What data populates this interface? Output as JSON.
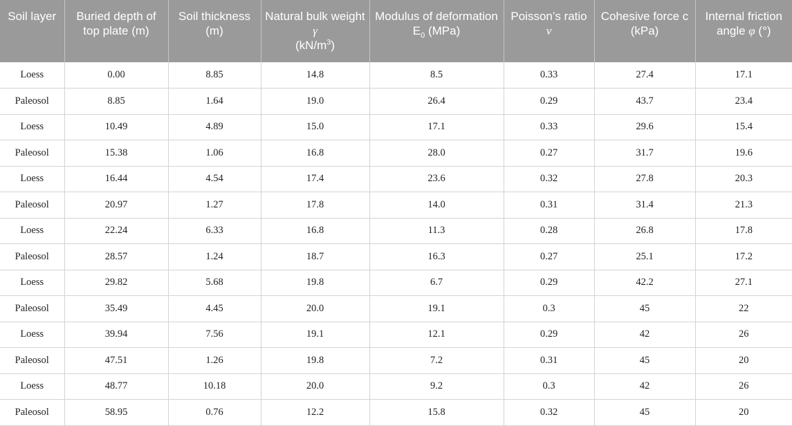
{
  "headers": {
    "soil_layer": "Soil layer",
    "buried_depth": "Buried depth of top plate (m)",
    "soil_thickness": "Soil thickness (m)",
    "bulk_weight_a": "Natural bulk weight ",
    "bulk_weight_sym": "γ",
    "bulk_weight_unit_a": "(kN/m",
    "bulk_weight_unit_sup": "3",
    "bulk_weight_unit_b": ")",
    "modulus_a": "Modulus of deformation E",
    "modulus_sub": "0",
    "modulus_b": " (MPa)",
    "poisson_a": "Poisson’s ratio ",
    "poisson_sym": "ν",
    "cohesive": "Cohesive force c (kPa)",
    "friction_a": "Internal friction angle ",
    "friction_sym": "φ",
    "friction_unit": " (°)"
  },
  "rows": [
    [
      "Loess",
      "0.00",
      "8.85",
      "14.8",
      "8.5",
      "0.33",
      "27.4",
      "17.1"
    ],
    [
      "Paleosol",
      "8.85",
      "1.64",
      "19.0",
      "26.4",
      "0.29",
      "43.7",
      "23.4"
    ],
    [
      "Loess",
      "10.49",
      "4.89",
      "15.0",
      "17.1",
      "0.33",
      "29.6",
      "15.4"
    ],
    [
      "Paleosol",
      "15.38",
      "1.06",
      "16.8",
      "28.0",
      "0.27",
      "31.7",
      "19.6"
    ],
    [
      "Loess",
      "16.44",
      "4.54",
      "17.4",
      "23.6",
      "0.32",
      "27.8",
      "20.3"
    ],
    [
      "Paleosol",
      "20.97",
      "1.27",
      "17.8",
      "14.0",
      "0.31",
      "31.4",
      "21.3"
    ],
    [
      "Loess",
      "22.24",
      "6.33",
      "16.8",
      "11.3",
      "0.28",
      "26.8",
      "17.8"
    ],
    [
      "Paleosol",
      "28.57",
      "1.24",
      "18.7",
      "16.3",
      "0.27",
      "25.1",
      "17.2"
    ],
    [
      "Loess",
      "29.82",
      "5.68",
      "19.8",
      "6.7",
      "0.29",
      "42.2",
      "27.1"
    ],
    [
      "Paleosol",
      "35.49",
      "4.45",
      "20.0",
      "19.1",
      "0.3",
      "45",
      "22"
    ],
    [
      "Loess",
      "39.94",
      "7.56",
      "19.1",
      "12.1",
      "0.29",
      "42",
      "26"
    ],
    [
      "Paleosol",
      "47.51",
      "1.26",
      "19.8",
      "7.2",
      "0.31",
      "45",
      "20"
    ],
    [
      "Loess",
      "48.77",
      "10.18",
      "20.0",
      "9.2",
      "0.3",
      "42",
      "26"
    ],
    [
      "Paleosol",
      "58.95",
      "0.76",
      "12.2",
      "15.8",
      "0.32",
      "45",
      "20"
    ]
  ],
  "colors": {
    "header_bg": "#9a9a9a",
    "header_text": "#ffffff",
    "grid": "#d3d3d3"
  }
}
